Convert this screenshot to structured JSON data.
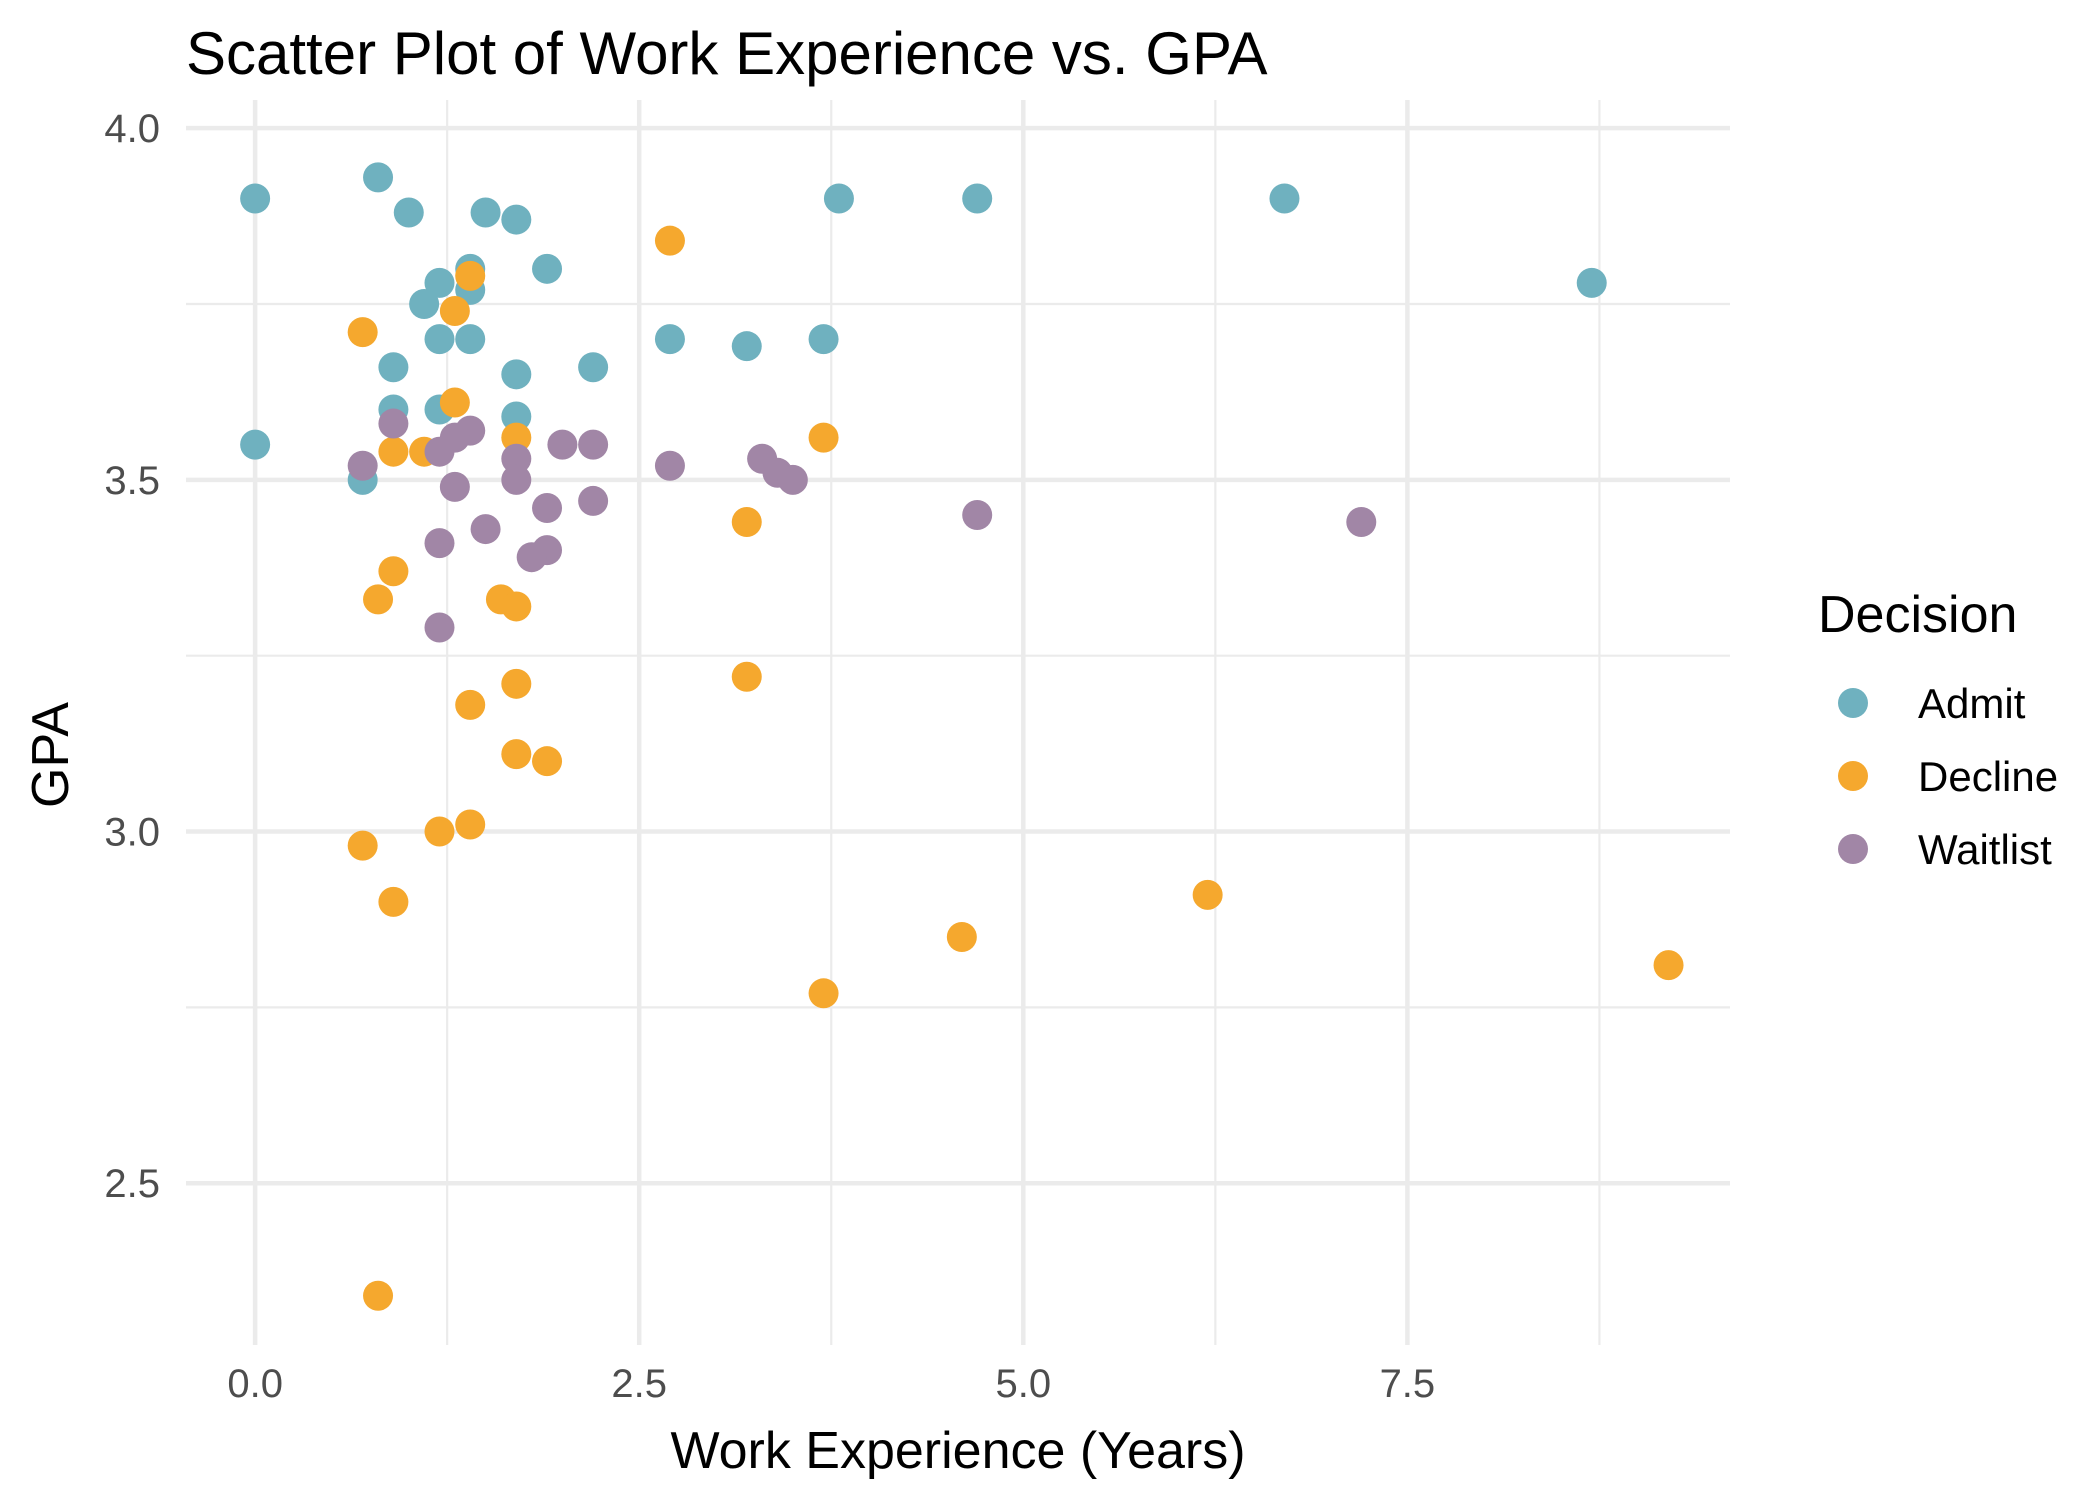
{
  "chart_data": {
    "type": "scatter",
    "title": "Scatter Plot of Work Experience vs. GPA",
    "xlabel": "Work Experience (Years)",
    "ylabel": "GPA",
    "xlim": [
      -0.45,
      9.6
    ],
    "ylim": [
      2.27,
      4.04
    ],
    "x_ticks": [
      0.0,
      2.5,
      5.0,
      7.5
    ],
    "x_tick_labels": [
      "0.0",
      "2.5",
      "5.0",
      "7.5"
    ],
    "y_ticks": [
      2.5,
      3.0,
      3.5,
      4.0
    ],
    "y_tick_labels": [
      "2.5",
      "3.0",
      "3.5",
      "4.0"
    ],
    "grid": true,
    "legend": {
      "title": "Decision",
      "position": "right"
    },
    "series": [
      {
        "name": "Admit",
        "color": "#6FB1BF",
        "points": [
          [
            0.0,
            3.9
          ],
          [
            0.0,
            3.55
          ],
          [
            0.8,
            3.93
          ],
          [
            1.0,
            3.88
          ],
          [
            1.5,
            3.88
          ],
          [
            1.7,
            3.87
          ],
          [
            1.4,
            3.8
          ],
          [
            1.9,
            3.8
          ],
          [
            1.2,
            3.78
          ],
          [
            1.4,
            3.77
          ],
          [
            1.1,
            3.75
          ],
          [
            1.2,
            3.7
          ],
          [
            1.4,
            3.7
          ],
          [
            0.9,
            3.66
          ],
          [
            1.7,
            3.65
          ],
          [
            2.2,
            3.66
          ],
          [
            0.9,
            3.6
          ],
          [
            1.2,
            3.6
          ],
          [
            1.7,
            3.59
          ],
          [
            0.7,
            3.5
          ],
          [
            2.7,
            3.7
          ],
          [
            3.2,
            3.69
          ],
          [
            3.7,
            3.7
          ],
          [
            3.8,
            3.9
          ],
          [
            4.7,
            3.9
          ],
          [
            6.7,
            3.9
          ],
          [
            8.7,
            3.78
          ]
        ]
      },
      {
        "name": "Decline",
        "color": "#F5A82E",
        "points": [
          [
            2.7,
            3.84
          ],
          [
            1.4,
            3.79
          ],
          [
            1.3,
            3.74
          ],
          [
            0.7,
            3.71
          ],
          [
            1.3,
            3.61
          ],
          [
            1.7,
            3.56
          ],
          [
            0.9,
            3.54
          ],
          [
            1.1,
            3.54
          ],
          [
            3.7,
            3.56
          ],
          [
            3.2,
            3.44
          ],
          [
            0.9,
            3.37
          ],
          [
            0.8,
            3.33
          ],
          [
            1.6,
            3.33
          ],
          [
            1.7,
            3.32
          ],
          [
            3.2,
            3.22
          ],
          [
            1.7,
            3.21
          ],
          [
            1.4,
            3.18
          ],
          [
            1.7,
            3.11
          ],
          [
            1.9,
            3.1
          ],
          [
            1.4,
            3.01
          ],
          [
            1.2,
            3.0
          ],
          [
            0.7,
            2.98
          ],
          [
            0.9,
            2.9
          ],
          [
            6.2,
            2.91
          ],
          [
            4.6,
            2.85
          ],
          [
            9.2,
            2.81
          ],
          [
            3.7,
            2.77
          ],
          [
            0.8,
            2.34
          ]
        ]
      },
      {
        "name": "Waitlist",
        "color": "#A186A6",
        "points": [
          [
            0.9,
            3.58
          ],
          [
            1.4,
            3.57
          ],
          [
            1.3,
            3.56
          ],
          [
            1.2,
            3.54
          ],
          [
            0.7,
            3.52
          ],
          [
            2.0,
            3.55
          ],
          [
            2.2,
            3.55
          ],
          [
            1.7,
            3.53
          ],
          [
            1.7,
            3.5
          ],
          [
            2.7,
            3.52
          ],
          [
            3.3,
            3.53
          ],
          [
            3.4,
            3.51
          ],
          [
            3.5,
            3.5
          ],
          [
            1.3,
            3.49
          ],
          [
            2.2,
            3.47
          ],
          [
            1.9,
            3.46
          ],
          [
            4.7,
            3.45
          ],
          [
            7.2,
            3.44
          ],
          [
            1.5,
            3.43
          ],
          [
            1.2,
            3.41
          ],
          [
            1.9,
            3.4
          ],
          [
            1.8,
            3.39
          ],
          [
            1.2,
            3.29
          ]
        ]
      }
    ]
  }
}
